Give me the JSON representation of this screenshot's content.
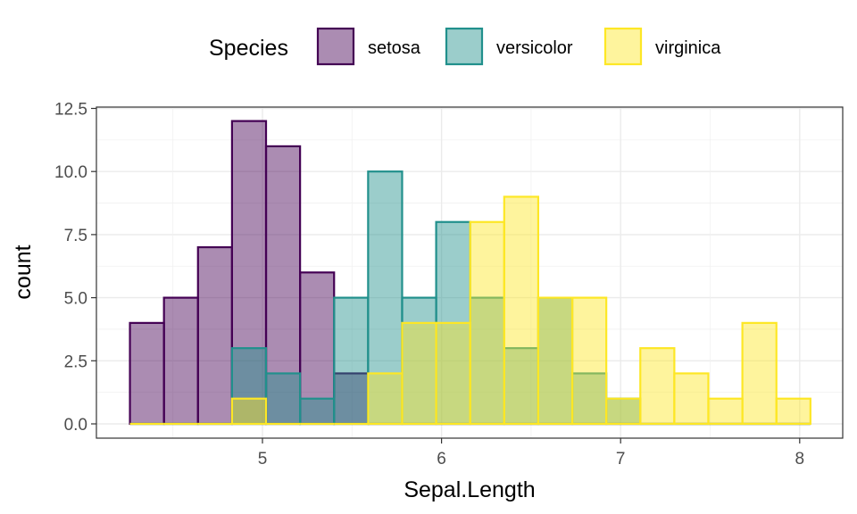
{
  "chart_data": {
    "type": "bar",
    "xlabel": "Sepal.Length",
    "ylabel": "count",
    "xlim": [
      4.2,
      8.1
    ],
    "ylim": [
      0,
      12.5
    ],
    "x_ticks": [
      5,
      6,
      7,
      8
    ],
    "x_tick_labels": [
      "5",
      "6",
      "7",
      "8"
    ],
    "y_ticks": [
      0,
      2.5,
      5,
      7.5,
      10,
      12.5
    ],
    "y_tick_labels": [
      "0.0",
      "2.5",
      "5.0",
      "7.5",
      "10.0",
      "12.5"
    ],
    "grid": true,
    "legend": {
      "title": "Species",
      "position": "top"
    },
    "bins": [
      [
        4.26,
        4.45
      ],
      [
        4.45,
        4.64
      ],
      [
        4.64,
        4.83
      ],
      [
        4.83,
        5.02
      ],
      [
        5.02,
        5.21
      ],
      [
        5.21,
        5.4
      ],
      [
        5.4,
        5.59
      ],
      [
        5.59,
        5.78
      ],
      [
        5.78,
        5.97
      ],
      [
        5.97,
        6.16
      ],
      [
        6.16,
        6.35
      ],
      [
        6.35,
        6.54
      ],
      [
        6.54,
        6.73
      ],
      [
        6.73,
        6.92
      ],
      [
        6.92,
        7.11
      ],
      [
        7.11,
        7.3
      ],
      [
        7.3,
        7.49
      ],
      [
        7.49,
        7.68
      ],
      [
        7.68,
        7.87
      ],
      [
        7.87,
        8.06
      ]
    ],
    "series": [
      {
        "name": "setosa",
        "fill": "#440154",
        "stroke": "#440154",
        "values": [
          4,
          5,
          7,
          12,
          11,
          6,
          2,
          0,
          0,
          0,
          0,
          0,
          0,
          0,
          0,
          0,
          0,
          0,
          0,
          0
        ]
      },
      {
        "name": "versicolor",
        "fill": "#21908C",
        "stroke": "#21908C",
        "values": [
          0,
          0,
          0,
          3,
          2,
          1,
          5,
          10,
          5,
          8,
          5,
          3,
          5,
          2,
          1,
          0,
          0,
          0,
          0,
          0
        ]
      },
      {
        "name": "virginica",
        "fill": "#FDE725",
        "stroke": "#FDE725",
        "values": [
          0,
          0,
          0,
          1,
          0,
          0,
          0,
          2,
          4,
          4,
          8,
          9,
          5,
          5,
          1,
          3,
          2,
          1,
          4,
          1
        ]
      }
    ]
  }
}
